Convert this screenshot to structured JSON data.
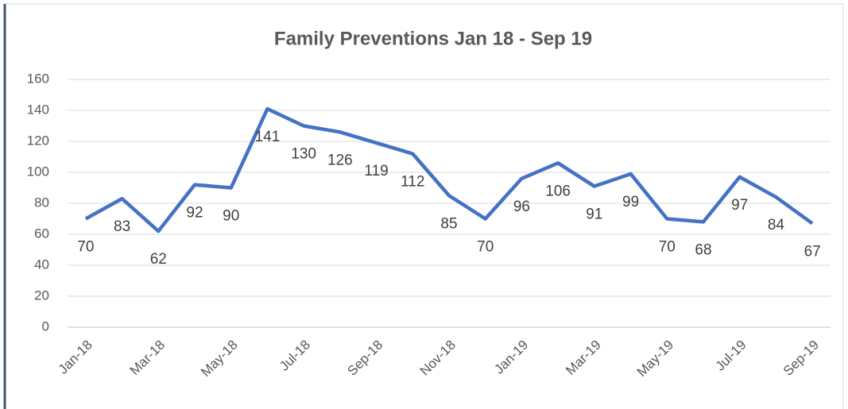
{
  "chart_data": {
    "type": "line",
    "title": "Family Preventions Jan 18 - Sep 19",
    "categories": [
      "Jan-18",
      null,
      "Mar-18",
      null,
      "May-18",
      null,
      "Jul-18",
      null,
      "Sep-18",
      null,
      "Nov-18",
      null,
      "Jan-19",
      null,
      "Mar-19",
      null,
      "May-19",
      null,
      "Jul-19",
      null,
      "Sep-19"
    ],
    "values": [
      70,
      83,
      62,
      92,
      90,
      141,
      130,
      126,
      119,
      112,
      85,
      70,
      96,
      106,
      91,
      99,
      70,
      68,
      97,
      84,
      67
    ],
    "color": "#4472c4",
    "ylim": [
      0,
      160
    ],
    "yticks": [
      0,
      20,
      40,
      60,
      80,
      100,
      120,
      140,
      160
    ],
    "grid": true
  }
}
